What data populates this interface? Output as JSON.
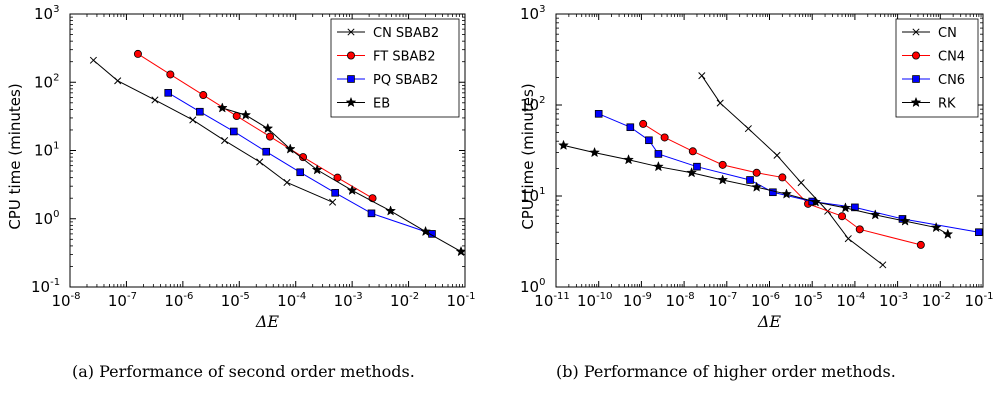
{
  "chart_data": [
    {
      "type": "line",
      "panel_label": "(a)",
      "caption": "(a) Performance of second order methods.",
      "xlabel": "ΔE",
      "ylabel": "CPU time (minutes)",
      "x_scale": "log",
      "y_scale": "log",
      "xlim": [
        1e-08,
        0.1
      ],
      "ylim": [
        0.1,
        1000
      ],
      "x_ticks": [
        {
          "value": 1e-08,
          "base": "10",
          "exp": "-8"
        },
        {
          "value": 1e-07,
          "base": "10",
          "exp": "-7"
        },
        {
          "value": 1e-06,
          "base": "10",
          "exp": "-6"
        },
        {
          "value": 1e-05,
          "base": "10",
          "exp": "-5"
        },
        {
          "value": 0.0001,
          "base": "10",
          "exp": "-4"
        },
        {
          "value": 0.001,
          "base": "10",
          "exp": "-3"
        },
        {
          "value": 0.01,
          "base": "10",
          "exp": "-2"
        },
        {
          "value": 0.1,
          "base": "10",
          "exp": "-1"
        }
      ],
      "y_ticks": [
        {
          "value": 0.1,
          "base": "10",
          "exp": "-1"
        },
        {
          "value": 1,
          "base": "10",
          "exp": "0"
        },
        {
          "value": 10,
          "base": "10",
          "exp": "1"
        },
        {
          "value": 100,
          "base": "10",
          "exp": "2"
        },
        {
          "value": 1000,
          "base": "10",
          "exp": "3"
        }
      ],
      "grid": false,
      "legend_position": "top-right",
      "series": [
        {
          "name": "CN SBAB2",
          "color": "#000000",
          "marker": "x",
          "x": [
            2.6e-08,
            7e-08,
            3.2e-07,
            1.5e-06,
            5.5e-06,
            2.3e-05,
            7e-05,
            0.00045
          ],
          "y": [
            210,
            105,
            55,
            28,
            14,
            6.8,
            3.4,
            1.75
          ]
        },
        {
          "name": "FT SBAB2",
          "color": "#ff0000",
          "marker": "circle",
          "x": [
            1.6e-07,
            6e-07,
            2.3e-06,
            9e-06,
            3.5e-05,
            0.000135,
            0.00055,
            0.0023
          ],
          "y": [
            260,
            130,
            65,
            32,
            16,
            8,
            4,
            2
          ]
        },
        {
          "name": "PQ SBAB2",
          "color": "#0000ff",
          "marker": "square",
          "x": [
            5.5e-07,
            2e-06,
            8e-06,
            3e-05,
            0.00012,
            0.0005,
            0.0022,
            0.026
          ],
          "y": [
            70,
            37,
            19,
            9.6,
            4.8,
            2.4,
            1.2,
            0.6
          ]
        },
        {
          "name": "EB",
          "color": "#000000",
          "marker": "star",
          "x": [
            5e-06,
            1.3e-05,
            3.2e-05,
            8e-05,
            0.00024,
            0.001,
            0.0048,
            0.02,
            0.085
          ],
          "y": [
            42,
            33,
            21,
            10.5,
            5.2,
            2.6,
            1.3,
            0.65,
            0.33
          ]
        }
      ]
    },
    {
      "type": "line",
      "panel_label": "(b)",
      "caption": "(b) Performance of higher order methods.",
      "xlabel": "ΔE",
      "ylabel": "CPU time (minutes)",
      "x_scale": "log",
      "y_scale": "log",
      "xlim": [
        1e-11,
        0.1
      ],
      "ylim": [
        1,
        1000
      ],
      "x_ticks": [
        {
          "value": 1e-11,
          "base": "10",
          "exp": "-11"
        },
        {
          "value": 1e-10,
          "base": "10",
          "exp": "-10"
        },
        {
          "value": 1e-09,
          "base": "10",
          "exp": "-9"
        },
        {
          "value": 1e-08,
          "base": "10",
          "exp": "-8"
        },
        {
          "value": 1e-07,
          "base": "10",
          "exp": "-7"
        },
        {
          "value": 1e-06,
          "base": "10",
          "exp": "-6"
        },
        {
          "value": 1e-05,
          "base": "10",
          "exp": "-5"
        },
        {
          "value": 0.0001,
          "base": "10",
          "exp": "-4"
        },
        {
          "value": 0.001,
          "base": "10",
          "exp": "-3"
        },
        {
          "value": 0.01,
          "base": "10",
          "exp": "-2"
        },
        {
          "value": 0.1,
          "base": "10",
          "exp": "-1"
        }
      ],
      "y_ticks": [
        {
          "value": 1,
          "base": "10",
          "exp": "0"
        },
        {
          "value": 10,
          "base": "10",
          "exp": "1"
        },
        {
          "value": 100,
          "base": "10",
          "exp": "2"
        },
        {
          "value": 1000,
          "base": "10",
          "exp": "3"
        }
      ],
      "grid": false,
      "legend_position": "top-right",
      "series": [
        {
          "name": "CN",
          "color": "#000000",
          "marker": "x",
          "x": [
            2.6e-08,
            7e-08,
            3.2e-07,
            1.5e-06,
            5.5e-06,
            2.3e-05,
            7e-05,
            0.00045
          ],
          "y": [
            210,
            105,
            55,
            28,
            14,
            6.8,
            3.4,
            1.75
          ]
        },
        {
          "name": "CN4",
          "color": "#ff0000",
          "marker": "circle",
          "x": [
            1.1e-09,
            3.5e-09,
            1.6e-08,
            8e-08,
            5e-07,
            2e-06,
            8e-06,
            5e-05,
            0.00013,
            0.0035
          ],
          "y": [
            62,
            44,
            31,
            22,
            18,
            16,
            8.2,
            6,
            4.3,
            2.9
          ]
        },
        {
          "name": "CN6",
          "color": "#0000ff",
          "marker": "square",
          "x": [
            1e-10,
            5.5e-10,
            1.5e-09,
            2.5e-09,
            2e-08,
            3.5e-07,
            1.2e-06,
            1e-05,
            0.0001,
            0.0013,
            0.08
          ],
          "y": [
            80,
            57,
            41,
            29,
            21,
            15,
            11,
            8.7,
            7.5,
            5.6,
            4
          ]
        },
        {
          "name": "RK",
          "color": "#000000",
          "marker": "star",
          "x": [
            1.5e-11,
            8e-11,
            5e-10,
            2.5e-09,
            1.5e-08,
            8e-08,
            5e-07,
            2.5e-06,
            1.2e-05,
            6e-05,
            0.0003,
            0.0015,
            0.008,
            0.015
          ],
          "y": [
            36,
            30,
            25,
            21,
            18,
            15,
            12.5,
            10.5,
            8.6,
            7.4,
            6.2,
            5.3,
            4.5,
            3.8
          ]
        }
      ]
    }
  ]
}
